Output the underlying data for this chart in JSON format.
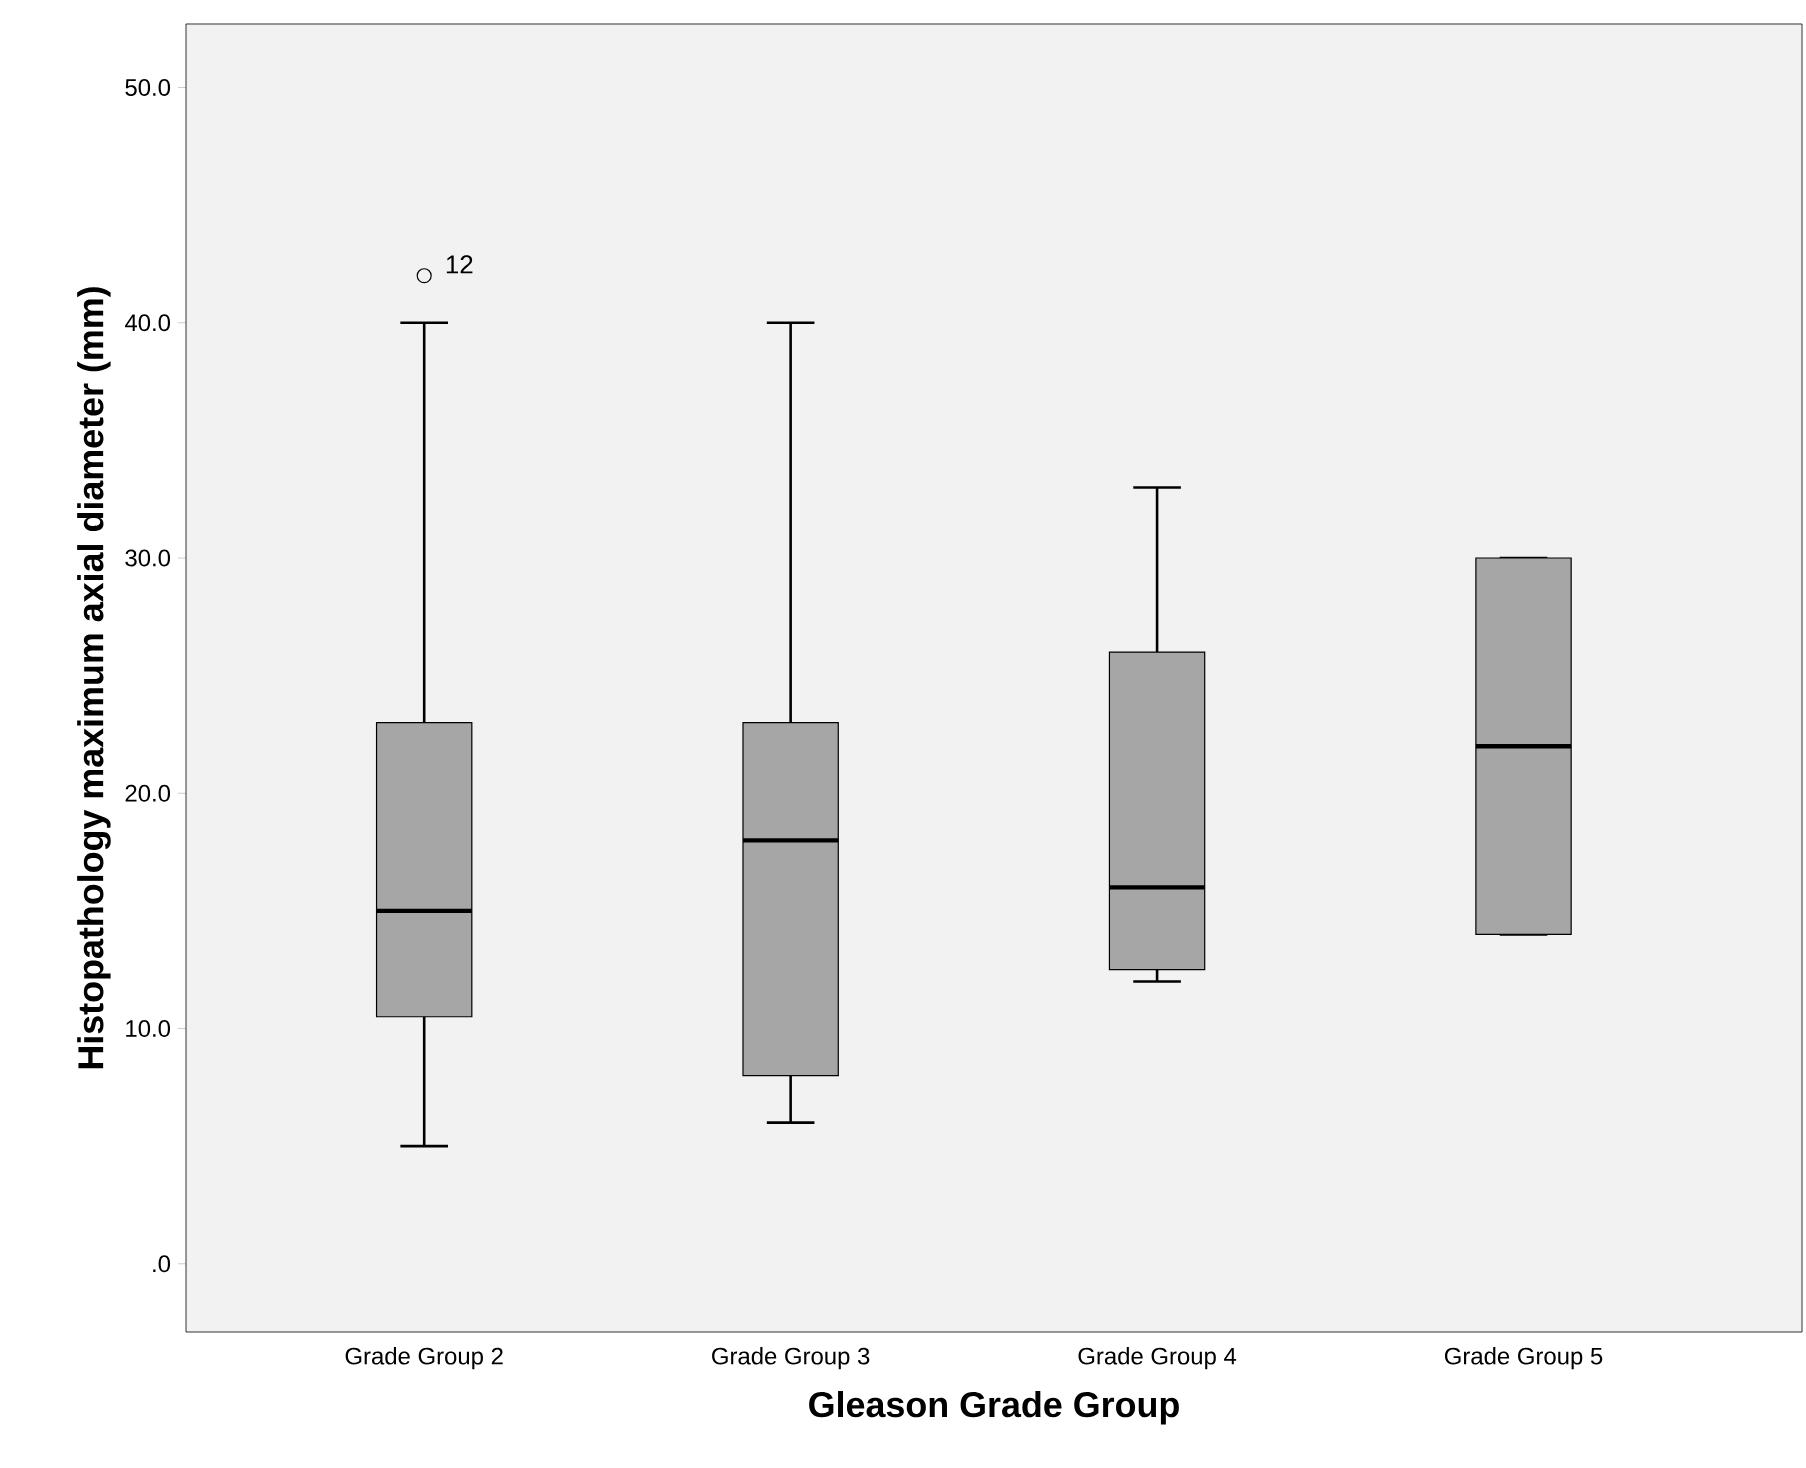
{
  "chart_data": {
    "type": "box",
    "xlabel": "Gleason Grade Group",
    "ylabel": "Histopathology maximum axial diameter  (mm)",
    "categories": [
      "Grade Group 2",
      "Grade Group 3",
      "Grade Group 4",
      "Grade Group 5"
    ],
    "boxes": [
      {
        "low": 5,
        "q1": 10.5,
        "median": 15,
        "q3": 23,
        "high": 40,
        "outliers": [
          42
        ]
      },
      {
        "low": 6,
        "q1": 8,
        "median": 18,
        "q3": 23,
        "high": 40
      },
      {
        "low": 12,
        "q1": 12.5,
        "median": 16,
        "q3": 26,
        "high": 33
      },
      {
        "low": 14,
        "q1": 14,
        "median": 22,
        "q3": 30,
        "high": 30
      }
    ],
    "color": "#a6a6a6",
    "ylim": [
      -2.9,
      52.7
    ],
    "yticks": [
      {
        "value": 0,
        "label": ".0"
      },
      {
        "value": 10,
        "label": "10.0"
      },
      {
        "value": 20,
        "label": "20.0"
      },
      {
        "value": 30,
        "label": "30.0"
      },
      {
        "value": 40,
        "label": "40.0"
      },
      {
        "value": 50,
        "label": "50.0"
      }
    ],
    "annotations": [
      "12"
    ]
  }
}
